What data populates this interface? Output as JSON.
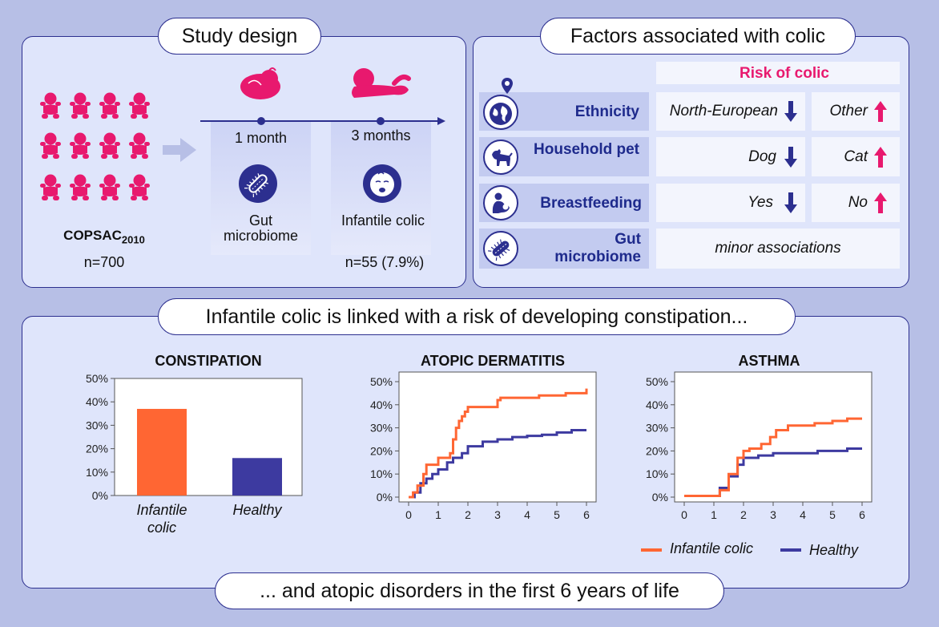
{
  "study_design": {
    "title": "Study design",
    "cohort_name": "COPSAC",
    "cohort_sub": "2010",
    "cohort_n": "n=700",
    "timepoint1": "1 month",
    "timepoint2": "3 months",
    "measure1": "Gut microbiome",
    "measure2": "Infantile colic",
    "colic_n": "n=55 (7.9%)"
  },
  "factors": {
    "title": "Factors associated with colic",
    "risk_header": "Risk of colic",
    "rows": [
      {
        "label": "Ethnicity",
        "icon": "globe-pin-icon",
        "low": "North-European",
        "high": "Other"
      },
      {
        "label": "Household pet",
        "icon": "dog-icon",
        "low": "Dog",
        "high": "Cat"
      },
      {
        "label": "Breastfeeding",
        "icon": "breastfeeding-icon",
        "low": "Yes",
        "high": "No"
      },
      {
        "label": "Gut microbiome",
        "icon": "bacteria-icon",
        "combined": "minor associations"
      }
    ]
  },
  "bottom": {
    "headline": "Infantile colic is linked with a risk of developing constipation...",
    "footer": "... and atopic disorders in the first 6 years of life"
  },
  "colors": {
    "colic": "#ff6633",
    "healthy": "#3d3aa0",
    "accent": "#e8196e",
    "navy": "#2c2f8f"
  },
  "chart_data": [
    {
      "type": "bar",
      "title": "CONSTIPATION",
      "categories": [
        "Infantile colic",
        "Healthy"
      ],
      "values": [
        37,
        16
      ],
      "ylim": [
        0,
        50
      ],
      "yticks": [
        "0%",
        "10%",
        "20%",
        "30%",
        "40%",
        "50%"
      ]
    },
    {
      "type": "line",
      "title": "ATOPIC DERMATITIS",
      "xlim": [
        0,
        6
      ],
      "ylim": [
        0,
        50
      ],
      "xticks": [
        "0",
        "1",
        "2",
        "3",
        "4",
        "5",
        "6"
      ],
      "yticks": [
        "0%",
        "10%",
        "20%",
        "30%",
        "40%",
        "50%"
      ],
      "series": [
        {
          "name": "Infantile colic",
          "x": [
            0,
            0.15,
            0.3,
            0.5,
            0.6,
            1.0,
            1.4,
            1.5,
            1.6,
            1.7,
            1.8,
            1.9,
            2.0,
            2.1,
            2.8,
            3.0,
            3.1,
            4.2,
            4.4,
            5.3,
            5.6,
            5.95,
            6.0
          ],
          "y": [
            0,
            2,
            5,
            10,
            14,
            17,
            19,
            25,
            30,
            33,
            35,
            37,
            39,
            39,
            39,
            42,
            43,
            43,
            44,
            45,
            45,
            45,
            47
          ]
        },
        {
          "name": "Healthy",
          "x": [
            0,
            0.2,
            0.4,
            0.6,
            0.8,
            1.0,
            1.3,
            1.5,
            1.8,
            2.0,
            2.5,
            3.0,
            3.5,
            4.0,
            4.5,
            5.0,
            5.5,
            6.0
          ],
          "y": [
            0,
            2,
            6,
            8,
            10,
            12,
            15,
            17,
            19,
            22,
            24,
            25,
            26,
            26.5,
            27,
            28,
            29,
            29
          ]
        }
      ]
    },
    {
      "type": "line",
      "title": "ASTHMA",
      "xlim": [
        0,
        6
      ],
      "ylim": [
        0,
        50
      ],
      "xticks": [
        "0",
        "1",
        "2",
        "3",
        "4",
        "5",
        "6"
      ],
      "yticks": [
        "0%",
        "10%",
        "20%",
        "30%",
        "40%",
        "50%"
      ],
      "legend": "bottom-right",
      "series": [
        {
          "name": "Infantile colic",
          "x": [
            0,
            0.5,
            1.0,
            1.2,
            1.5,
            1.8,
            2.0,
            2.2,
            2.6,
            2.9,
            3.1,
            3.5,
            4.0,
            4.4,
            5.0,
            5.5,
            6.0
          ],
          "y": [
            0.5,
            0.5,
            0.5,
            3,
            10,
            17,
            20,
            21,
            23,
            26,
            29,
            31,
            31,
            32,
            33,
            34,
            34
          ]
        },
        {
          "name": "Healthy",
          "x": [
            0,
            0.5,
            1.0,
            1.2,
            1.5,
            1.8,
            2.0,
            2.5,
            3.0,
            4.0,
            4.5,
            5.0,
            5.5,
            6.0
          ],
          "y": [
            0.5,
            0.5,
            0.5,
            4,
            9,
            14,
            17,
            18,
            19,
            19,
            20,
            20,
            21,
            21
          ]
        }
      ]
    }
  ]
}
